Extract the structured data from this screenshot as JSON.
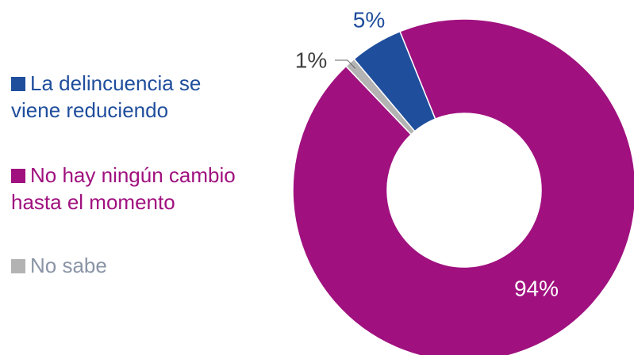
{
  "chart_data": {
    "type": "donut",
    "categories": [
      "La delincuencia se viene reduciendo",
      "No hay ningún cambio hasta el momento",
      "No sabe"
    ],
    "values": [
      5,
      94,
      1
    ],
    "value_labels": [
      "5%",
      "94%",
      "1%"
    ],
    "colors": [
      "#1f4e9c",
      "#a0117f",
      "#b3b3b3"
    ],
    "label_colors": [
      "#1f4e9c",
      "#a0117f",
      "#8a94a6"
    ]
  }
}
